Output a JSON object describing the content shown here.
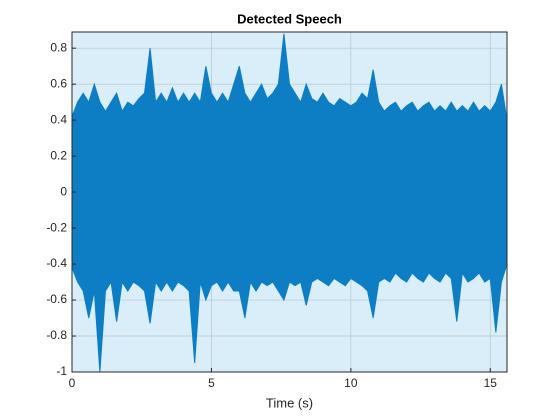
{
  "chart_data": {
    "type": "area",
    "title": "Detected Speech",
    "x_label": "Time (s)",
    "x": [
      0,
      0.2,
      0.4,
      0.6,
      0.8,
      1.0,
      1.2,
      1.4,
      1.6,
      1.8,
      2.0,
      2.2,
      2.4,
      2.6,
      2.8,
      3.0,
      3.2,
      3.4,
      3.6,
      3.8,
      4.0,
      4.2,
      4.4,
      4.6,
      4.8,
      5.0,
      5.2,
      5.4,
      5.6,
      5.8,
      6.0,
      6.2,
      6.4,
      6.6,
      6.8,
      7.0,
      7.2,
      7.4,
      7.6,
      7.8,
      8.0,
      8.2,
      8.4,
      8.6,
      8.8,
      9.0,
      9.2,
      9.4,
      9.6,
      9.8,
      10.0,
      10.2,
      10.4,
      10.6,
      10.8,
      11.0,
      11.2,
      11.4,
      11.6,
      11.8,
      12.0,
      12.2,
      12.4,
      12.6,
      12.8,
      13.0,
      13.2,
      13.4,
      13.6,
      13.8,
      14.0,
      14.2,
      14.4,
      14.6,
      14.8,
      15.0,
      15.2,
      15.4,
      15.6
    ],
    "series": [
      {
        "color": "#0e7ec4",
        "values": [
          0.42,
          0.5,
          0.55,
          0.5,
          0.6,
          0.5,
          0.45,
          0.5,
          0.55,
          0.45,
          0.5,
          0.48,
          0.52,
          0.55,
          0.8,
          0.5,
          0.55,
          0.5,
          0.58,
          0.5,
          0.55,
          0.5,
          0.55,
          0.5,
          0.7,
          0.55,
          0.5,
          0.55,
          0.5,
          0.6,
          0.7,
          0.55,
          0.5,
          0.55,
          0.6,
          0.52,
          0.55,
          0.6,
          0.88,
          0.6,
          0.55,
          0.5,
          0.6,
          0.52,
          0.5,
          0.55,
          0.5,
          0.48,
          0.52,
          0.5,
          0.48,
          0.5,
          0.55,
          0.52,
          0.68,
          0.5,
          0.45,
          0.48,
          0.5,
          0.45,
          0.48,
          0.5,
          0.45,
          0.48,
          0.5,
          0.45,
          0.48,
          0.45,
          0.5,
          0.45,
          0.48,
          0.45,
          0.5,
          0.45,
          0.48,
          0.45,
          0.5,
          0.6,
          0.4
        ]
      },
      {
        "color": "#0e7ec4",
        "values": [
          -0.42,
          -0.5,
          -0.55,
          -0.7,
          -0.55,
          -1.0,
          -0.55,
          -0.5,
          -0.72,
          -0.5,
          -0.55,
          -0.5,
          -0.52,
          -0.55,
          -0.73,
          -0.5,
          -0.55,
          -0.5,
          -0.55,
          -0.5,
          -0.52,
          -0.55,
          -0.95,
          -0.5,
          -0.6,
          -0.52,
          -0.5,
          -0.55,
          -0.5,
          -0.55,
          -0.55,
          -0.7,
          -0.5,
          -0.55,
          -0.5,
          -0.52,
          -0.5,
          -0.55,
          -0.6,
          -0.5,
          -0.52,
          -0.5,
          -0.63,
          -0.5,
          -0.48,
          -0.5,
          -0.52,
          -0.48,
          -0.5,
          -0.52,
          -0.48,
          -0.5,
          -0.52,
          -0.55,
          -0.7,
          -0.5,
          -0.48,
          -0.5,
          -0.45,
          -0.48,
          -0.5,
          -0.45,
          -0.48,
          -0.5,
          -0.45,
          -0.48,
          -0.5,
          -0.45,
          -0.48,
          -0.72,
          -0.45,
          -0.5,
          -0.48,
          -0.45,
          -0.5,
          -0.48,
          -0.78,
          -0.5,
          -0.4
        ]
      }
    ],
    "xlim": [
      0,
      15.6
    ],
    "ylim": [
      -1,
      0.89
    ],
    "xticks": [
      0,
      5,
      10,
      15
    ],
    "yticks": [
      -1,
      -0.8,
      -0.6,
      -0.4,
      -0.2,
      0,
      0.2,
      0.4,
      0.6,
      0.8
    ],
    "grid": true,
    "background": "#d9eef9"
  }
}
